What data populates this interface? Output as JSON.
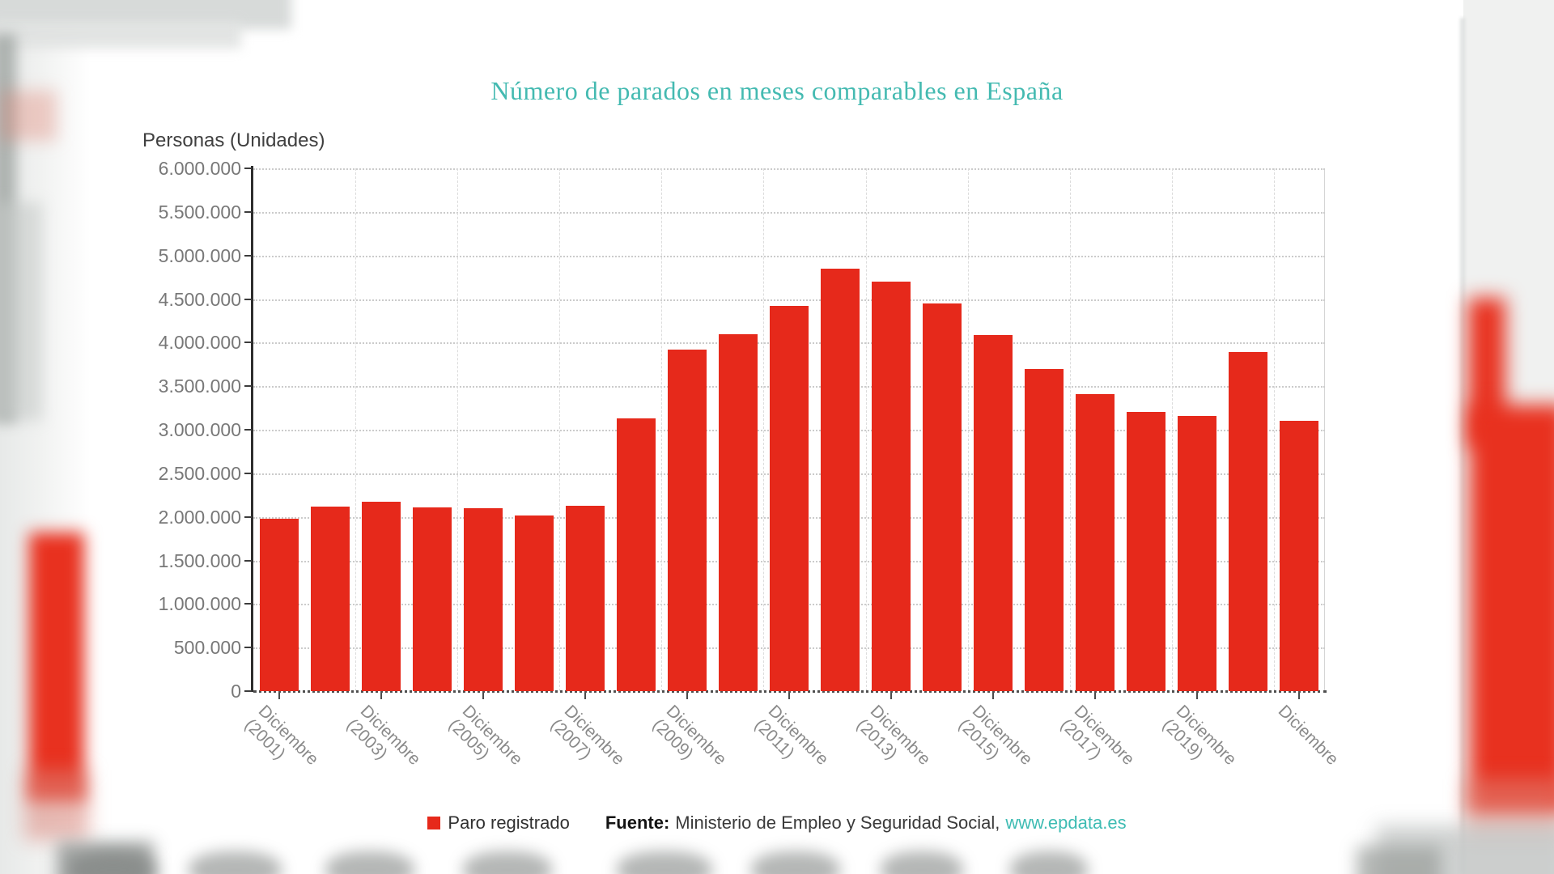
{
  "title": {
    "text": "Número de parados en meses comparables en España",
    "color": "#44bab1"
  },
  "y_axis": {
    "title": "Personas (Unidades)",
    "tick_labels": [
      "0",
      "500.000",
      "1.000.000",
      "1.500.000",
      "2.000.000",
      "2.500.000",
      "3.000.000",
      "3.500.000",
      "4.000.000",
      "4.500.000",
      "5.000.000",
      "5.500.000",
      "6.000.000"
    ]
  },
  "x_axis": {
    "tick_labels": [
      {
        "line1": "Diciembre",
        "line2": "(2001)"
      },
      {
        "line1": "Diciembre",
        "line2": "(2003)"
      },
      {
        "line1": "Diciembre",
        "line2": "(2005)"
      },
      {
        "line1": "Diciembre",
        "line2": "(2007)"
      },
      {
        "line1": "Diciembre",
        "line2": "(2009)"
      },
      {
        "line1": "Diciembre",
        "line2": "(2011)"
      },
      {
        "line1": "Diciembre",
        "line2": "(2013)"
      },
      {
        "line1": "Diciembre",
        "line2": "(2015)"
      },
      {
        "line1": "Diciembre",
        "line2": "(2017)"
      },
      {
        "line1": "Diciembre",
        "line2": "(2019)"
      },
      {
        "line1": "Diciembre",
        "line2": ""
      }
    ]
  },
  "legend": {
    "series_label": "Paro registrado",
    "marker_color": "#e6291b"
  },
  "source": {
    "prefix": "Fuente:",
    "text": "Ministerio de Empleo y Seguridad Social,",
    "link": "www.epdata.es",
    "link_color": "#3ebcb3"
  },
  "chart_data": {
    "type": "bar",
    "title": "Número de parados en meses comparables en España",
    "series_name": "Paro registrado",
    "ylabel": "Personas (Unidades)",
    "ylim": [
      0,
      6000000
    ],
    "ytick_step": 500000,
    "bar_color": "#e6291b",
    "grid": "horizontal dotted, vertical dashed every 2 categories, legend bottom",
    "categories": [
      "Diciembre 2001",
      "Diciembre 2002",
      "Diciembre 2003",
      "Diciembre 2004",
      "Diciembre 2005",
      "Diciembre 2006",
      "Diciembre 2007",
      "Diciembre 2008",
      "Diciembre 2009",
      "Diciembre 2010",
      "Diciembre 2011",
      "Diciembre 2012",
      "Diciembre 2013",
      "Diciembre 2014",
      "Diciembre 2015",
      "Diciembre 2016",
      "Diciembre 2017",
      "Diciembre 2018",
      "Diciembre 2019",
      "Diciembre 2020",
      "Diciembre 2021"
    ],
    "values": [
      1980000,
      2120000,
      2170000,
      2110000,
      2100000,
      2020000,
      2130000,
      3130000,
      3920000,
      4100000,
      4420000,
      4850000,
      4700000,
      4450000,
      4090000,
      3700000,
      3410000,
      3200000,
      3160000,
      3890000,
      3100000
    ],
    "x_ticks_shown": [
      "Diciembre (2001)",
      "Diciembre (2003)",
      "Diciembre (2005)",
      "Diciembre (2007)",
      "Diciembre (2009)",
      "Diciembre (2011)",
      "Diciembre (2013)",
      "Diciembre (2015)",
      "Diciembre (2017)",
      "Diciembre (2019)",
      "Diciembre"
    ]
  }
}
